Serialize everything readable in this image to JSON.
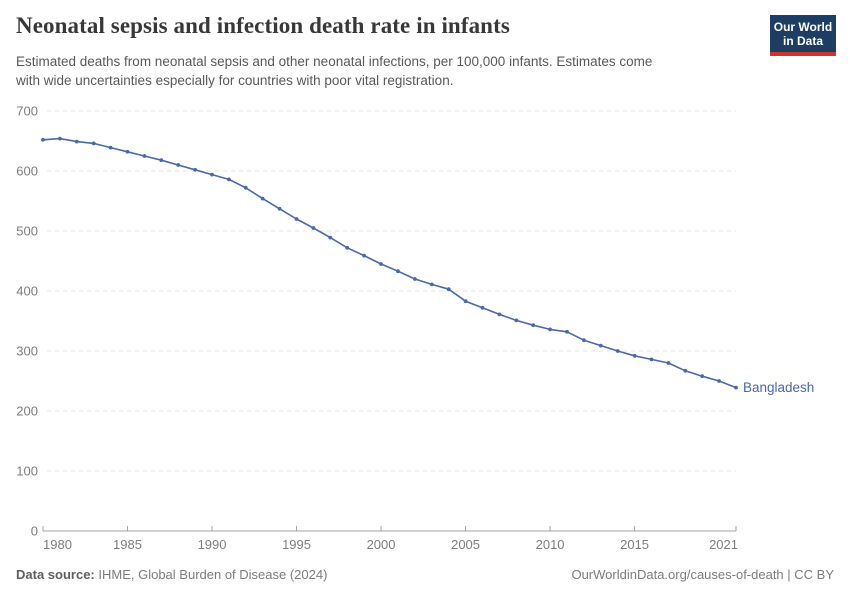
{
  "header": {
    "title": "Neonatal sepsis and infection death rate in infants",
    "subtitle_line1": "Estimated deaths from neonatal sepsis and other neonatal infections, per 100,000 infants. Estimates come",
    "subtitle_line2": "with wide uncertainties especially for countries with poor vital registration.",
    "logo": {
      "line1": "Our World",
      "line2": "in Data",
      "bg_color": "#1d3d63",
      "accent_color": "#cf342c"
    }
  },
  "chart_data": {
    "type": "line",
    "title": "Neonatal sepsis and infection death rate in infants",
    "xlabel": "",
    "ylabel": "",
    "xlim": [
      1980,
      2021
    ],
    "ylim": [
      0,
      700
    ],
    "yticks": [
      0,
      100,
      200,
      300,
      400,
      500,
      600,
      700
    ],
    "xticks": [
      1980,
      1985,
      1990,
      1995,
      2000,
      2005,
      2010,
      2015,
      2021
    ],
    "grid": "horizontal-dashed",
    "legend": "end-of-line-label",
    "markers": true,
    "series": [
      {
        "name": "Bangladesh",
        "color": "#4a69a8",
        "x": [
          1980,
          1981,
          1982,
          1983,
          1984,
          1985,
          1986,
          1987,
          1988,
          1989,
          1990,
          1991,
          1992,
          1993,
          1994,
          1995,
          1996,
          1997,
          1998,
          1999,
          2000,
          2001,
          2002,
          2003,
          2004,
          2005,
          2006,
          2007,
          2008,
          2009,
          2010,
          2011,
          2012,
          2013,
          2014,
          2015,
          2016,
          2017,
          2018,
          2019,
          2020,
          2021
        ],
        "values": [
          652,
          654,
          649,
          646,
          639,
          632,
          625,
          618,
          610,
          602,
          594,
          586,
          572,
          554,
          537,
          520,
          505,
          489,
          472,
          459,
          445,
          433,
          420,
          411,
          403,
          383,
          372,
          361,
          351,
          343,
          336,
          332,
          318,
          309,
          300,
          292,
          286,
          280,
          267,
          258,
          250,
          239
        ]
      }
    ]
  },
  "footer": {
    "source_label": "Data source:",
    "source_text": "IHME, Global Burden of Disease (2024)",
    "credit": "OurWorldinData.org/causes-of-death | CC BY"
  }
}
